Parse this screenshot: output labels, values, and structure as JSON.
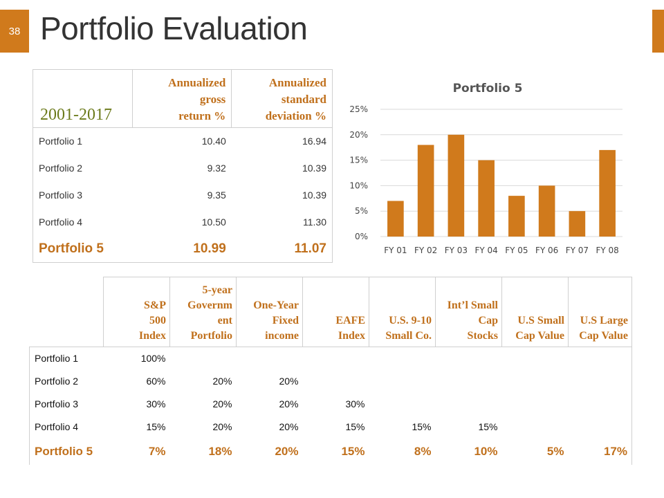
{
  "slide": {
    "number": "38",
    "title": "Portfolio Evaluation",
    "accent": "#d07a1c"
  },
  "summary_table": {
    "period": "2001-2017",
    "columns": [
      "Annualized gross return %",
      "Annualized standard deviation %"
    ],
    "col1_lines": [
      "Annualized",
      "gross",
      "return %"
    ],
    "col2_lines": [
      "Annualized",
      "standard",
      "deviation %"
    ],
    "rows": [
      {
        "name": "Portfolio 1",
        "ret": "10.40",
        "sd": "16.94"
      },
      {
        "name": "Portfolio 2",
        "ret": "9.32",
        "sd": "10.39"
      },
      {
        "name": "Portfolio 3",
        "ret": "9.35",
        "sd": "10.39"
      },
      {
        "name": "Portfolio 4",
        "ret": "10.50",
        "sd": "11.30"
      },
      {
        "name": "Portfolio 5",
        "ret": "10.99",
        "sd": "11.07"
      }
    ]
  },
  "chart_data": {
    "type": "bar",
    "title": "Portfolio 5",
    "categories": [
      "FY 01",
      "FY 02",
      "FY 03",
      "FY 04",
      "FY 05",
      "FY 06",
      "FY 07",
      "FY 08"
    ],
    "values": [
      7,
      18,
      20,
      15,
      8,
      10,
      5,
      17
    ],
    "ylim": [
      0,
      25
    ],
    "yticks": [
      "0%",
      "5%",
      "10%",
      "15%",
      "20%",
      "25%"
    ],
    "ytick_values": [
      0,
      5,
      10,
      15,
      20,
      25
    ],
    "bar_color": "#d07a1c",
    "grid_color": "#d9d9d9",
    "xlabel": "",
    "ylabel": ""
  },
  "allocation_table": {
    "headers": [
      [
        "S&P",
        "500",
        "Index"
      ],
      [
        "5-year",
        "Governm",
        "ent",
        "Portfolio"
      ],
      [
        "One-Year",
        "Fixed",
        "income"
      ],
      [
        "EAFE",
        "Index"
      ],
      [
        "U.S. 9-10",
        "Small Co."
      ],
      [
        "Int’l Small",
        "Cap",
        "Stocks"
      ],
      [
        "U.S Small",
        "Cap Value"
      ],
      [
        "U.S Large",
        "Cap Value"
      ]
    ],
    "rows": [
      {
        "name": "Portfolio 1",
        "values": [
          "100%",
          "",
          "",
          "",
          "",
          "",
          "",
          ""
        ]
      },
      {
        "name": "Portfolio 2",
        "values": [
          "60%",
          "20%",
          "20%",
          "",
          "",
          "",
          "",
          ""
        ]
      },
      {
        "name": "Portfolio 3",
        "values": [
          "30%",
          "20%",
          "20%",
          "30%",
          "",
          "",
          "",
          ""
        ]
      },
      {
        "name": "Portfolio 4",
        "values": [
          "15%",
          "20%",
          "20%",
          "15%",
          "15%",
          "15%",
          "",
          ""
        ]
      },
      {
        "name": "Portfolio 5",
        "values": [
          "7%",
          "18%",
          "20%",
          "15%",
          "8%",
          "10%",
          "5%",
          "17%"
        ]
      }
    ]
  }
}
